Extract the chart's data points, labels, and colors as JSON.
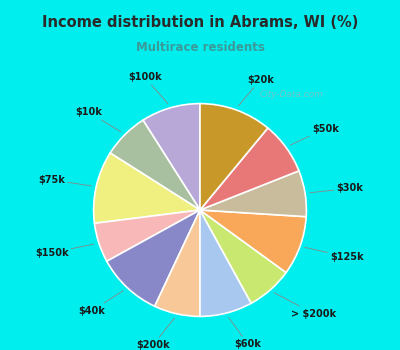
{
  "title": "Income distribution in Abrams, WI (%)",
  "subtitle": "Multirace residents",
  "title_color": "#2a2a2a",
  "subtitle_color": "#3a9a9a",
  "background_outer": "#00eeee",
  "background_inner_top": "#d8f0e8",
  "background_inner_bottom": "#e8f8f0",
  "labels": [
    "$100k",
    "$10k",
    "$75k",
    "$150k",
    "$40k",
    "$200k",
    "$60k",
    "> $200k",
    "$125k",
    "$30k",
    "$50k",
    "$20k"
  ],
  "values": [
    9,
    7,
    11,
    6,
    10,
    7,
    8,
    7,
    9,
    7,
    8,
    11
  ],
  "colors": [
    "#b8a8d8",
    "#a8c0a0",
    "#f0f080",
    "#f8b8b8",
    "#8888c8",
    "#f8c898",
    "#a8c8f0",
    "#c8e870",
    "#f8a858",
    "#c8bc9c",
    "#e87878",
    "#c89828"
  ],
  "watermark": "City-Data.com",
  "startangle": 90,
  "label_fontsize": 7,
  "label_color": "#1a1a1a"
}
